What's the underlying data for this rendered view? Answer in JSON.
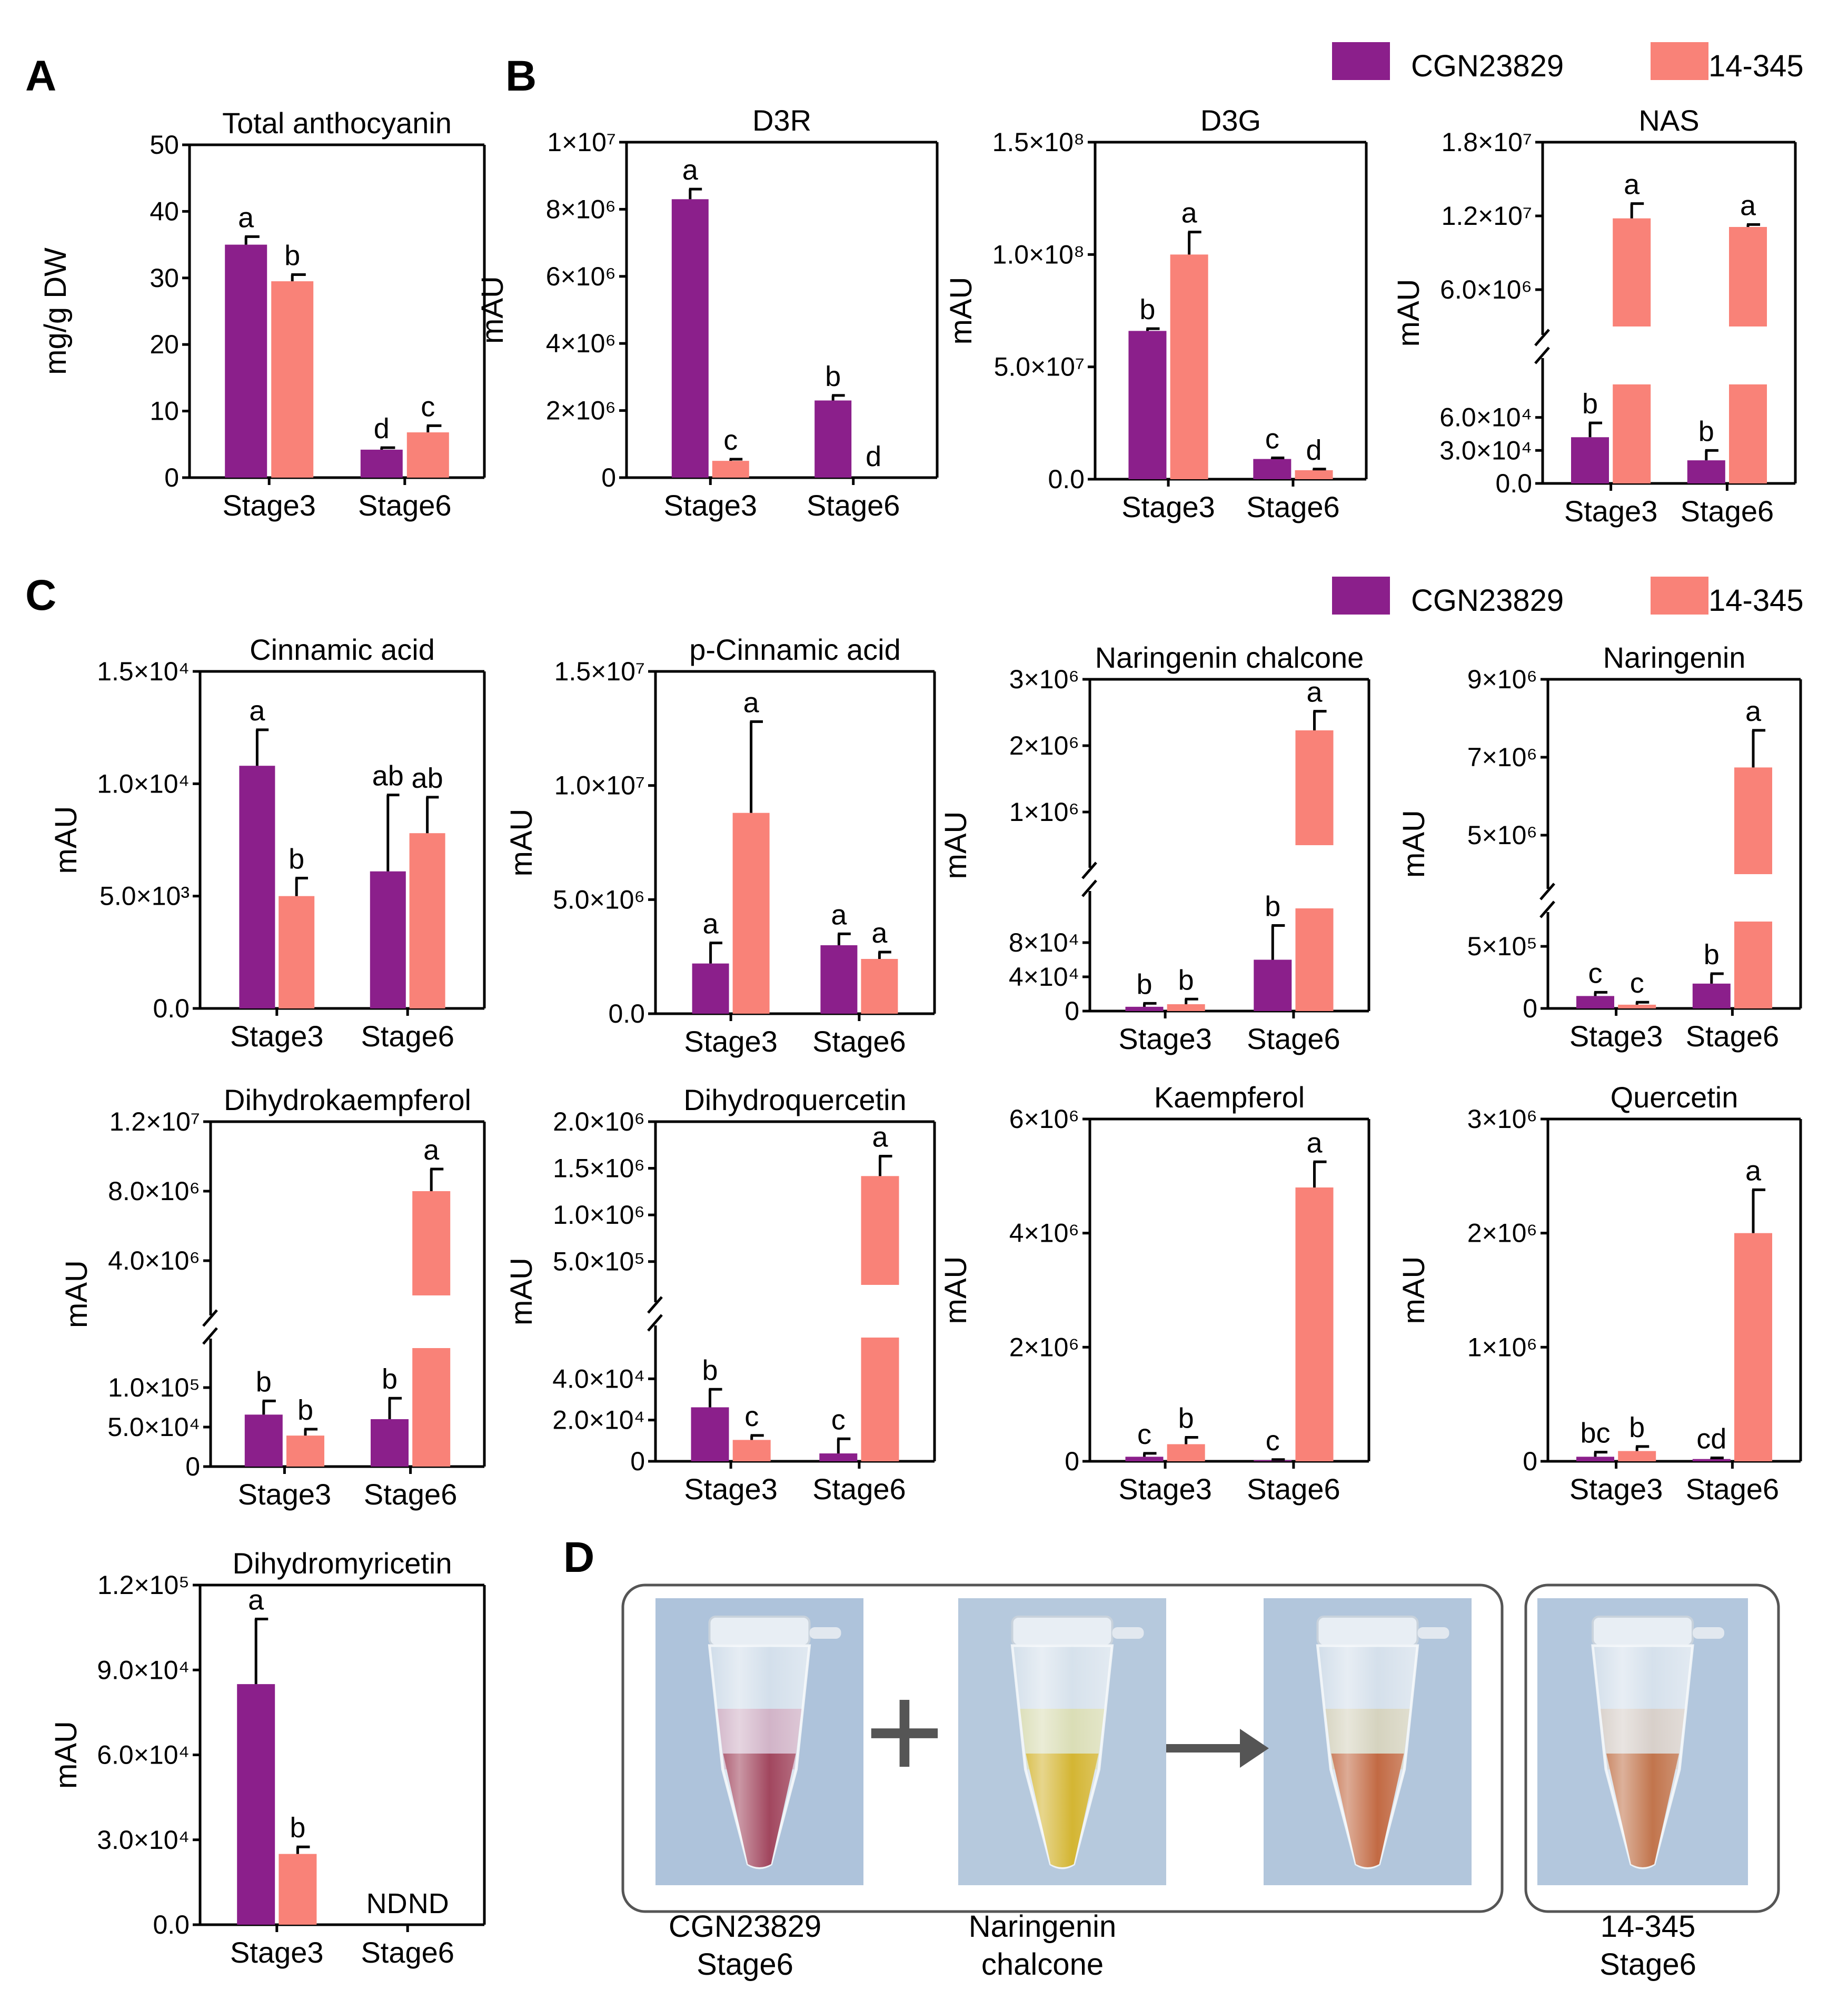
{
  "colors": {
    "series1": "#8B1F8B",
    "series2": "#F98278",
    "axis": "#000000",
    "bracket": "#555555"
  },
  "legend_B": [
    {
      "label": "CGN23829"
    },
    {
      "label": "14-345"
    }
  ],
  "legend_C": [
    {
      "label": "CGN23829"
    },
    {
      "label": "14-345"
    }
  ],
  "panel_labels": {
    "A": "A",
    "B": "B",
    "C": "C",
    "D": "D"
  },
  "chart_data": [
    {
      "id": "A1",
      "panel": "A",
      "type": "bar",
      "title": "Total anthocyanin",
      "ylabel": "mg/g DW",
      "categories": [
        "Stage3",
        "Stage6"
      ],
      "series_names": [
        "CGN23829",
        "14-345"
      ],
      "values": [
        [
          35.0,
          29.5
        ],
        [
          4.2,
          6.8
        ]
      ],
      "errors": [
        [
          1.2,
          1.0
        ],
        [
          0.3,
          1.0
        ]
      ],
      "letters": [
        [
          "a",
          "b"
        ],
        [
          "d",
          "c"
        ]
      ],
      "yticks": [
        "0",
        "10",
        "20",
        "30",
        "40",
        "50"
      ],
      "ylim": [
        0,
        50
      ]
    },
    {
      "id": "B1",
      "panel": "B",
      "type": "bar",
      "title": "D3R",
      "ylabel": "mAU",
      "categories": [
        "Stage3",
        "Stage6"
      ],
      "values": [
        [
          8300000,
          500000
        ],
        [
          2300000,
          0
        ]
      ],
      "errors": [
        [
          300000,
          50000
        ],
        [
          150000,
          0
        ]
      ],
      "letters": [
        [
          "a",
          "c"
        ],
        [
          "b",
          "d"
        ]
      ],
      "yticks": [
        "0",
        "2×10⁶",
        "4×10⁶",
        "6×10⁶",
        "8×10⁶",
        "1×10⁷"
      ],
      "ylim": [
        0,
        10000000
      ]
    },
    {
      "id": "B2",
      "panel": "B",
      "type": "bar",
      "title": "D3G",
      "ylabel": "mAU",
      "categories": [
        "Stage3",
        "Stage6"
      ],
      "values": [
        [
          66000000,
          100000000
        ],
        [
          9000000,
          4000000
        ]
      ],
      "errors": [
        [
          1000000,
          10000000
        ],
        [
          500000,
          500000
        ]
      ],
      "letters": [
        [
          "b",
          "a"
        ],
        [
          "c",
          "d"
        ]
      ],
      "yticks": [
        "0.0",
        "5.0×10⁷",
        "1.0×10⁸",
        "1.5×10⁸"
      ],
      "ylim": [
        0,
        150000000
      ]
    },
    {
      "id": "B3",
      "panel": "B",
      "type": "bar",
      "title": "NAS",
      "ylabel": "mAU",
      "broken_axis": true,
      "categories": [
        "Stage3",
        "Stage6"
      ],
      "values": [
        [
          42000,
          11800000
        ],
        [
          21000,
          11100000
        ]
      ],
      "errors": [
        [
          13000,
          1200000
        ],
        [
          9000,
          200000
        ]
      ],
      "letters": [
        [
          "b",
          "a"
        ],
        [
          "b",
          "a"
        ]
      ],
      "lower_yticks": [
        "0.0",
        "3.0×10⁴",
        "6.0×10⁴"
      ],
      "lower_ylim": [
        0,
        90000
      ],
      "upper_yticks": [
        "6.0×10⁶",
        "1.2×10⁷",
        "1.8×10⁷"
      ],
      "upper_ylim": [
        3000000,
        18000000
      ]
    },
    {
      "id": "C1",
      "panel": "C",
      "type": "bar",
      "title": "Cinnamic acid",
      "ylabel": "mAU",
      "categories": [
        "Stage3",
        "Stage6"
      ],
      "values": [
        [
          10800,
          5000
        ],
        [
          6100,
          7800
        ]
      ],
      "errors": [
        [
          1600,
          800
        ],
        [
          3400,
          1600
        ]
      ],
      "letters": [
        [
          "a",
          "b"
        ],
        [
          "ab",
          "ab"
        ]
      ],
      "yticks": [
        "0.0",
        "5.0×10³",
        "1.0×10⁴",
        "1.5×10⁴"
      ],
      "ylim": [
        0,
        15000
      ]
    },
    {
      "id": "C2",
      "panel": "C",
      "type": "bar",
      "title": "p-Cinnamic acid",
      "ylabel": "mAU",
      "categories": [
        "Stage3",
        "Stage6"
      ],
      "values": [
        [
          2200000,
          8800000
        ],
        [
          3000000,
          2400000
        ]
      ],
      "errors": [
        [
          900000,
          4000000
        ],
        [
          500000,
          300000
        ]
      ],
      "letters": [
        [
          "a",
          "a"
        ],
        [
          "a",
          "a"
        ]
      ],
      "yticks": [
        "0.0",
        "5.0×10⁶",
        "1.0×10⁷",
        "1.5×10⁷"
      ],
      "ylim": [
        0,
        15000000
      ]
    },
    {
      "id": "C3",
      "panel": "C",
      "type": "bar",
      "title": "Naringenin chalcone",
      "ylabel": "mAU",
      "broken_axis": true,
      "categories": [
        "Stage3",
        "Stage6"
      ],
      "values": [
        [
          5000,
          8000
        ],
        [
          60000,
          2200000
        ]
      ],
      "errors": [
        [
          4000,
          6000
        ],
        [
          40000,
          300000
        ]
      ],
      "letters": [
        [
          "b",
          "b"
        ],
        [
          "b",
          "a"
        ]
      ],
      "lower_yticks": [
        "0",
        "4×10⁴",
        "8×10⁴"
      ],
      "lower_ylim": [
        0,
        120000
      ],
      "upper_yticks": [
        "1×10⁶",
        "2×10⁶",
        "3×10⁶"
      ],
      "upper_ylim": [
        400000,
        3000000
      ]
    },
    {
      "id": "C4",
      "panel": "C",
      "type": "bar",
      "title": "Naringenin",
      "ylabel": "mAU",
      "broken_axis": true,
      "categories": [
        "Stage3",
        "Stage6"
      ],
      "values": [
        [
          100000,
          30000
        ],
        [
          200000,
          7100000
        ]
      ],
      "errors": [
        [
          30000,
          20000
        ],
        [
          80000,
          800000
        ]
      ],
      "letters": [
        [
          "c",
          "c"
        ],
        [
          "b",
          "a"
        ]
      ],
      "lower_yticks": [
        "0",
        "5×10⁵"
      ],
      "lower_ylim": [
        0,
        700000
      ],
      "upper_yticks": [
        "5×10⁶",
        "7×10⁶",
        "9×10⁶"
      ],
      "upper_ylim": [
        4800000,
        9000000
      ]
    },
    {
      "id": "C5",
      "panel": "C",
      "type": "bar",
      "title": "Dihydrokaempferol",
      "ylabel": "mAU",
      "broken_axis": true,
      "categories": [
        "Stage3",
        "Stage6"
      ],
      "values": [
        [
          57000,
          34000
        ],
        [
          52000,
          7600000
        ]
      ],
      "errors": [
        [
          15000,
          7000
        ],
        [
          23000,
          1400000
        ]
      ],
      "letters": [
        [
          "b",
          "b"
        ],
        [
          "b",
          "a"
        ]
      ],
      "lower_yticks": [
        "0",
        "5.0×10⁴",
        "1.0×10⁵"
      ],
      "lower_ylim": [
        0,
        130000
      ],
      "upper_yticks": [
        "4.0×10⁶",
        "8.0×10⁶",
        "1.2×10⁷"
      ],
      "upper_ylim": [
        1000000,
        12000000
      ]
    },
    {
      "id": "C6",
      "panel": "C",
      "type": "bar",
      "title": "Dihydroquercetin",
      "ylabel": "mAU",
      "broken_axis": true,
      "categories": [
        "Stage3",
        "Stage6"
      ],
      "values": [
        [
          24000,
          9500
        ],
        [
          3500,
          1400000
        ]
      ],
      "errors": [
        [
          8000,
          2000
        ],
        [
          6500,
          220000
        ]
      ],
      "letters": [
        [
          "b",
          "c"
        ],
        [
          "c",
          "a"
        ]
      ],
      "lower_yticks": [
        "0",
        "2.0×10⁴",
        "4.0×10⁴"
      ],
      "lower_ylim": [
        0,
        55000
      ],
      "upper_yticks": [
        "5.0×10⁵",
        "1.0×10⁶",
        "1.5×10⁶",
        "2.0×10⁶"
      ],
      "upper_ylim": [
        200000,
        2000000
      ]
    },
    {
      "id": "C7",
      "panel": "C",
      "type": "bar",
      "title": "Kaempferol",
      "ylabel": "mAU",
      "categories": [
        "Stage3",
        "Stage6"
      ],
      "values": [
        [
          80000,
          300000
        ],
        [
          20000,
          4800000
        ]
      ],
      "errors": [
        [
          60000,
          120000
        ],
        [
          10000,
          450000
        ]
      ],
      "letters": [
        [
          "c",
          "b"
        ],
        [
          "c",
          "a"
        ]
      ],
      "yticks": [
        "0",
        "2×10⁶",
        "4×10⁶",
        "6×10⁶"
      ],
      "ylim": [
        0,
        6000000
      ]
    },
    {
      "id": "C8",
      "panel": "C",
      "type": "bar",
      "title": "Quercetin",
      "ylabel": "mAU",
      "categories": [
        "Stage3",
        "Stage6"
      ],
      "values": [
        [
          40000,
          90000
        ],
        [
          20000,
          2000000
        ]
      ],
      "errors": [
        [
          40000,
          40000
        ],
        [
          10000,
          380000
        ]
      ],
      "letters": [
        [
          "bc",
          "b"
        ],
        [
          "cd",
          "a"
        ]
      ],
      "yticks": [
        "0",
        "1×10⁶",
        "2×10⁶",
        "3×10⁶"
      ],
      "ylim": [
        0,
        3000000
      ]
    },
    {
      "id": "C9",
      "panel": "C",
      "type": "bar",
      "title": "Dihydromyricetin",
      "ylabel": "mAU",
      "categories": [
        "Stage3",
        "Stage6"
      ],
      "values": [
        [
          85000,
          25000
        ],
        [
          0,
          0
        ]
      ],
      "errors": [
        [
          23000,
          2500
        ],
        [
          0,
          0
        ]
      ],
      "letters": [
        [
          "a",
          "b"
        ],
        [
          "ND",
          "ND"
        ]
      ],
      "yticks": [
        "0.0",
        "3.0×10⁴",
        "6.0×10⁴",
        "9.0×10⁴",
        "1.2×10⁵"
      ],
      "ylim": [
        0,
        120000
      ]
    }
  ],
  "panel_D": {
    "plus_symbol": "+",
    "captions": [
      {
        "line1": "CGN23829",
        "line2": "Stage6"
      },
      {
        "line1": "Naringenin",
        "line2": "chalcone"
      },
      {
        "line1": "14-345",
        "line2": "Stage6"
      }
    ],
    "photos": [
      {
        "name": "CGN23829 Stage6 extract",
        "liquid": "#8a1836",
        "tint": "#c35f86",
        "bg": "#aec3db"
      },
      {
        "name": "Naringenin chalcone solution",
        "liquid": "#c9a300",
        "tint": "#d8cf52",
        "bg": "#b6c9dd"
      },
      {
        "name": "Mixed extract",
        "liquid": "#b34515",
        "tint": "#cbb66c",
        "bg": "#b2c6dc"
      },
      {
        "name": "14-345 Stage6 extract",
        "liquid": "#b25220",
        "tint": "#d3ab8a",
        "bg": "#b3c7dd"
      }
    ]
  }
}
